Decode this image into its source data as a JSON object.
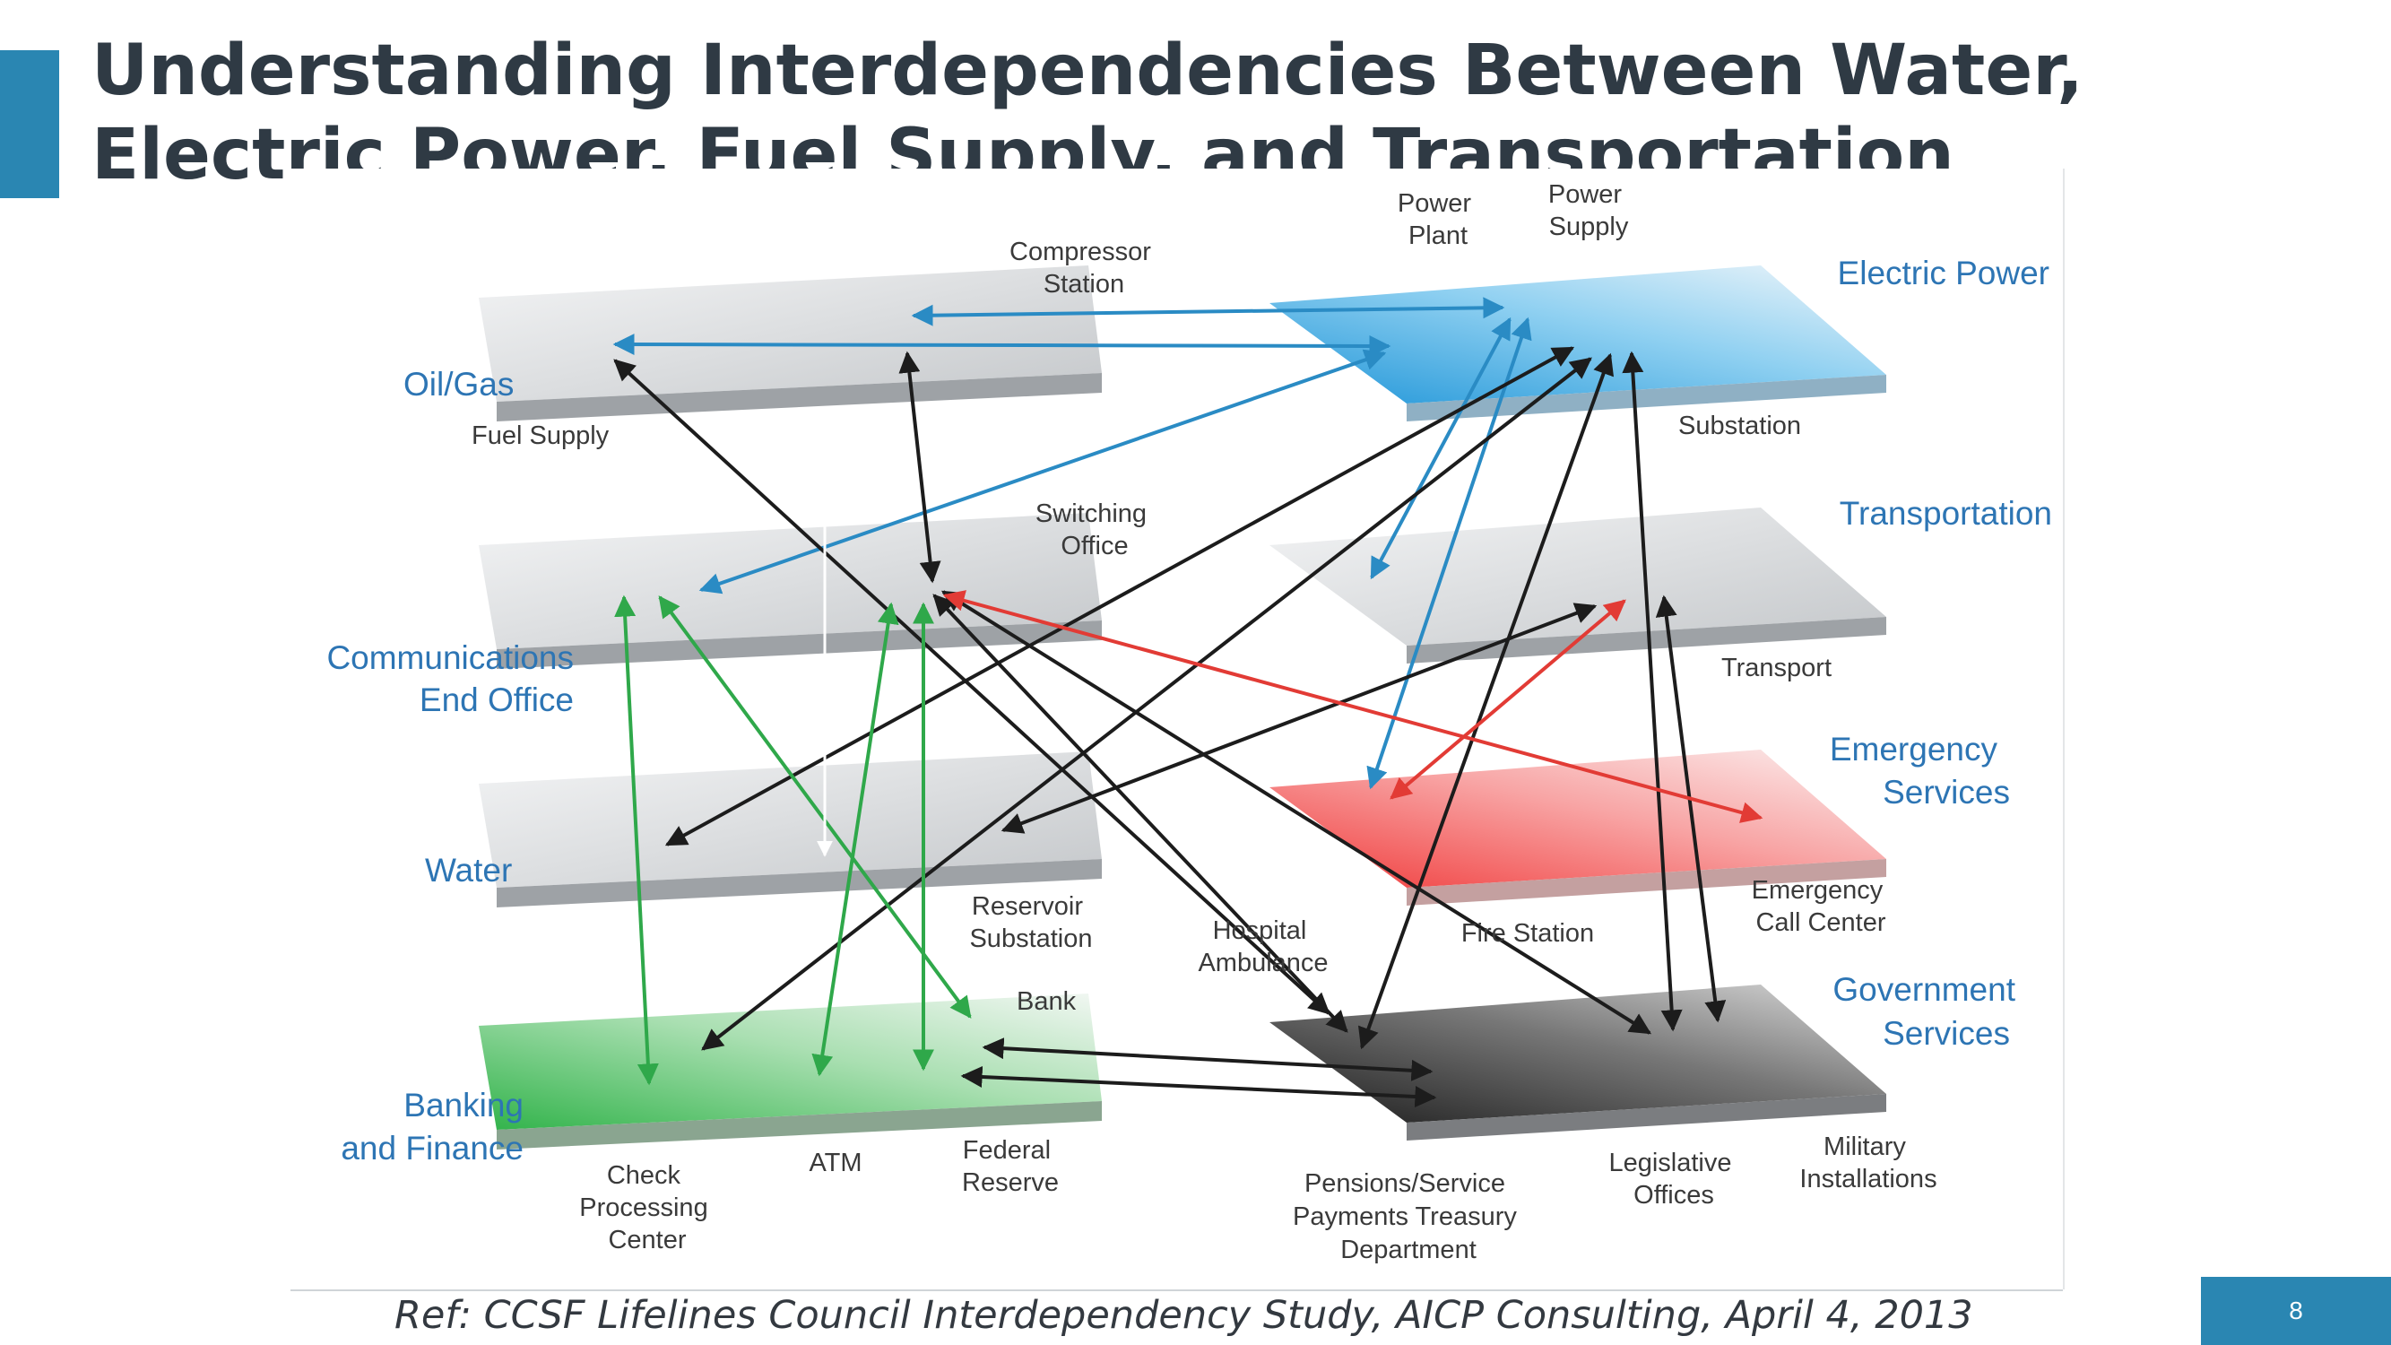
{
  "title": "Understanding Interdependencies Between Water, Electric Power, Fuel Supply, and Transportation",
  "reference": "Ref: CCSF Lifelines Council Interdependency Study, AICP Consulting, April 4, 2013",
  "page_number": "8",
  "colors": {
    "accent": "#2a86b2",
    "title_text": "#2f3a44",
    "sector_label": "#2d75b4",
    "arrow_black": "#1c1c1c",
    "arrow_blue": "#2a8bc4",
    "arrow_green": "#2fa84a",
    "arrow_red": "#e23b35"
  },
  "sectors": {
    "oil_gas": "Oil/Gas",
    "communications_1": "Communications",
    "communications_2": "End Office",
    "water": "Water",
    "banking_1": "Banking",
    "banking_2": "and Finance",
    "electric_power": "Electric Power",
    "transportation": "Transportation",
    "emergency_1": "Emergency",
    "emergency_2": "Services",
    "government_1": "Government",
    "government_2": "Services"
  },
  "facilities": {
    "fuel_supply": "Fuel Supply",
    "compressor_station": [
      "Compressor",
      "Station"
    ],
    "switching_office": [
      "Switching",
      "Office"
    ],
    "reservoir_substation": [
      "Reservoir",
      "Substation"
    ],
    "bank": "Bank",
    "check_processing_center": [
      "Check",
      "Processing",
      "Center"
    ],
    "atm": "ATM",
    "federal_reserve": [
      "Federal",
      "Reserve"
    ],
    "power_plant": [
      "Power",
      "Plant"
    ],
    "power_supply": [
      "Power",
      "Supply"
    ],
    "substation": "Substation",
    "transport": "Transport",
    "hospital_ambulance": [
      "Hospital",
      "Ambulance"
    ],
    "fire_station": "Fire Station",
    "emergency_call_center": [
      "Emergency",
      "Call Center"
    ],
    "pensions_treasury": [
      "Pensions/Service",
      "Payments Treasury",
      "Department"
    ],
    "legislative_offices": [
      "Legislative",
      "Offices"
    ],
    "military_installations": [
      "Military",
      "Installations"
    ]
  }
}
